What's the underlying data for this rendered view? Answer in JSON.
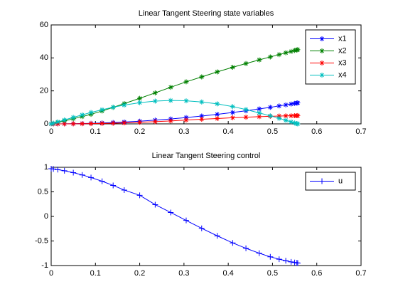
{
  "chart_data": [
    {
      "type": "line",
      "title": "Linear Tangent Steering state variables",
      "x": [
        0,
        0.005,
        0.015,
        0.03,
        0.05,
        0.07,
        0.09,
        0.115,
        0.14,
        0.165,
        0.2,
        0.235,
        0.27,
        0.305,
        0.34,
        0.375,
        0.41,
        0.44,
        0.47,
        0.495,
        0.515,
        0.53,
        0.542,
        0.55,
        0.555,
        0.557
      ],
      "series": [
        {
          "name": "x1",
          "color": "#0000ff",
          "marker": "*",
          "values": [
            0,
            0.001,
            0.009,
            0.037,
            0.103,
            0.201,
            0.332,
            0.542,
            0.804,
            1.116,
            1.64,
            2.264,
            2.989,
            3.814,
            4.74,
            5.766,
            6.892,
            7.938,
            9.057,
            10.046,
            10.874,
            11.517,
            12.044,
            12.403,
            12.629,
            12.72
          ]
        },
        {
          "name": "x2",
          "color": "#008000",
          "marker": "*",
          "values": [
            0,
            0.3,
            0.9,
            1.8,
            3.1,
            4.4,
            5.8,
            7.8,
            10,
            12.3,
            15.5,
            18.8,
            22.2,
            25.5,
            28.5,
            31.5,
            34.3,
            36.6,
            38.8,
            40.6,
            42.0,
            43.1,
            43.9,
            44.5,
            44.8,
            45
          ]
        },
        {
          "name": "x3",
          "color": "#ff0000",
          "marker": "*",
          "values": [
            0,
            0,
            0,
            0.02,
            0.05,
            0.1,
            0.16,
            0.26,
            0.4,
            0.6,
            0.95,
            1.35,
            1.8,
            2.3,
            2.8,
            3.25,
            3.7,
            4.05,
            4.35,
            4.6,
            4.75,
            4.85,
            4.92,
            4.96,
            4.98,
            5.0
          ]
        },
        {
          "name": "x4",
          "color": "#00bfbf",
          "marker": "*",
          "values": [
            0,
            0.4,
            1.2,
            2.39,
            3.95,
            5.46,
            6.9,
            8.58,
            10.08,
            11.38,
            12.84,
            13.8,
            14.18,
            14.0,
            13.28,
            12.13,
            10.49,
            8.69,
            6.64,
            4.88,
            3.37,
            2.16,
            1.2,
            0.56,
            0.16,
            0
          ]
        }
      ],
      "xlim": [
        0,
        0.7
      ],
      "xticks": [
        0,
        0.1,
        0.2,
        0.3,
        0.4,
        0.5,
        0.6,
        0.7
      ],
      "ylim": [
        0,
        60
      ],
      "yticks": [
        0,
        20,
        40,
        60
      ],
      "legend": "northeast",
      "grid": false
    },
    {
      "type": "line",
      "title": "Linear Tangent Steering control",
      "x": [
        0,
        0.005,
        0.015,
        0.03,
        0.05,
        0.07,
        0.09,
        0.115,
        0.14,
        0.165,
        0.2,
        0.235,
        0.27,
        0.305,
        0.34,
        0.375,
        0.41,
        0.44,
        0.47,
        0.495,
        0.515,
        0.53,
        0.542,
        0.55,
        0.555,
        0.557
      ],
      "series": [
        {
          "name": "u",
          "color": "#0000ff",
          "marker": "+",
          "values": [
            0.971,
            0.966,
            0.952,
            0.929,
            0.891,
            0.845,
            0.792,
            0.716,
            0.631,
            0.537,
            0.43,
            0.24,
            0.08,
            -0.082,
            -0.242,
            -0.395,
            -0.539,
            -0.649,
            -0.749,
            -0.822,
            -0.871,
            -0.902,
            -0.925,
            -0.938,
            -0.946,
            -0.95
          ]
        }
      ],
      "xlim": [
        0,
        0.7
      ],
      "xticks": [
        0,
        0.1,
        0.2,
        0.3,
        0.4,
        0.5,
        0.6,
        0.7
      ],
      "ylim": [
        -1,
        1
      ],
      "yticks": [
        -1,
        -0.5,
        0,
        0.5,
        1
      ],
      "legend": "northeast",
      "grid": false
    }
  ]
}
